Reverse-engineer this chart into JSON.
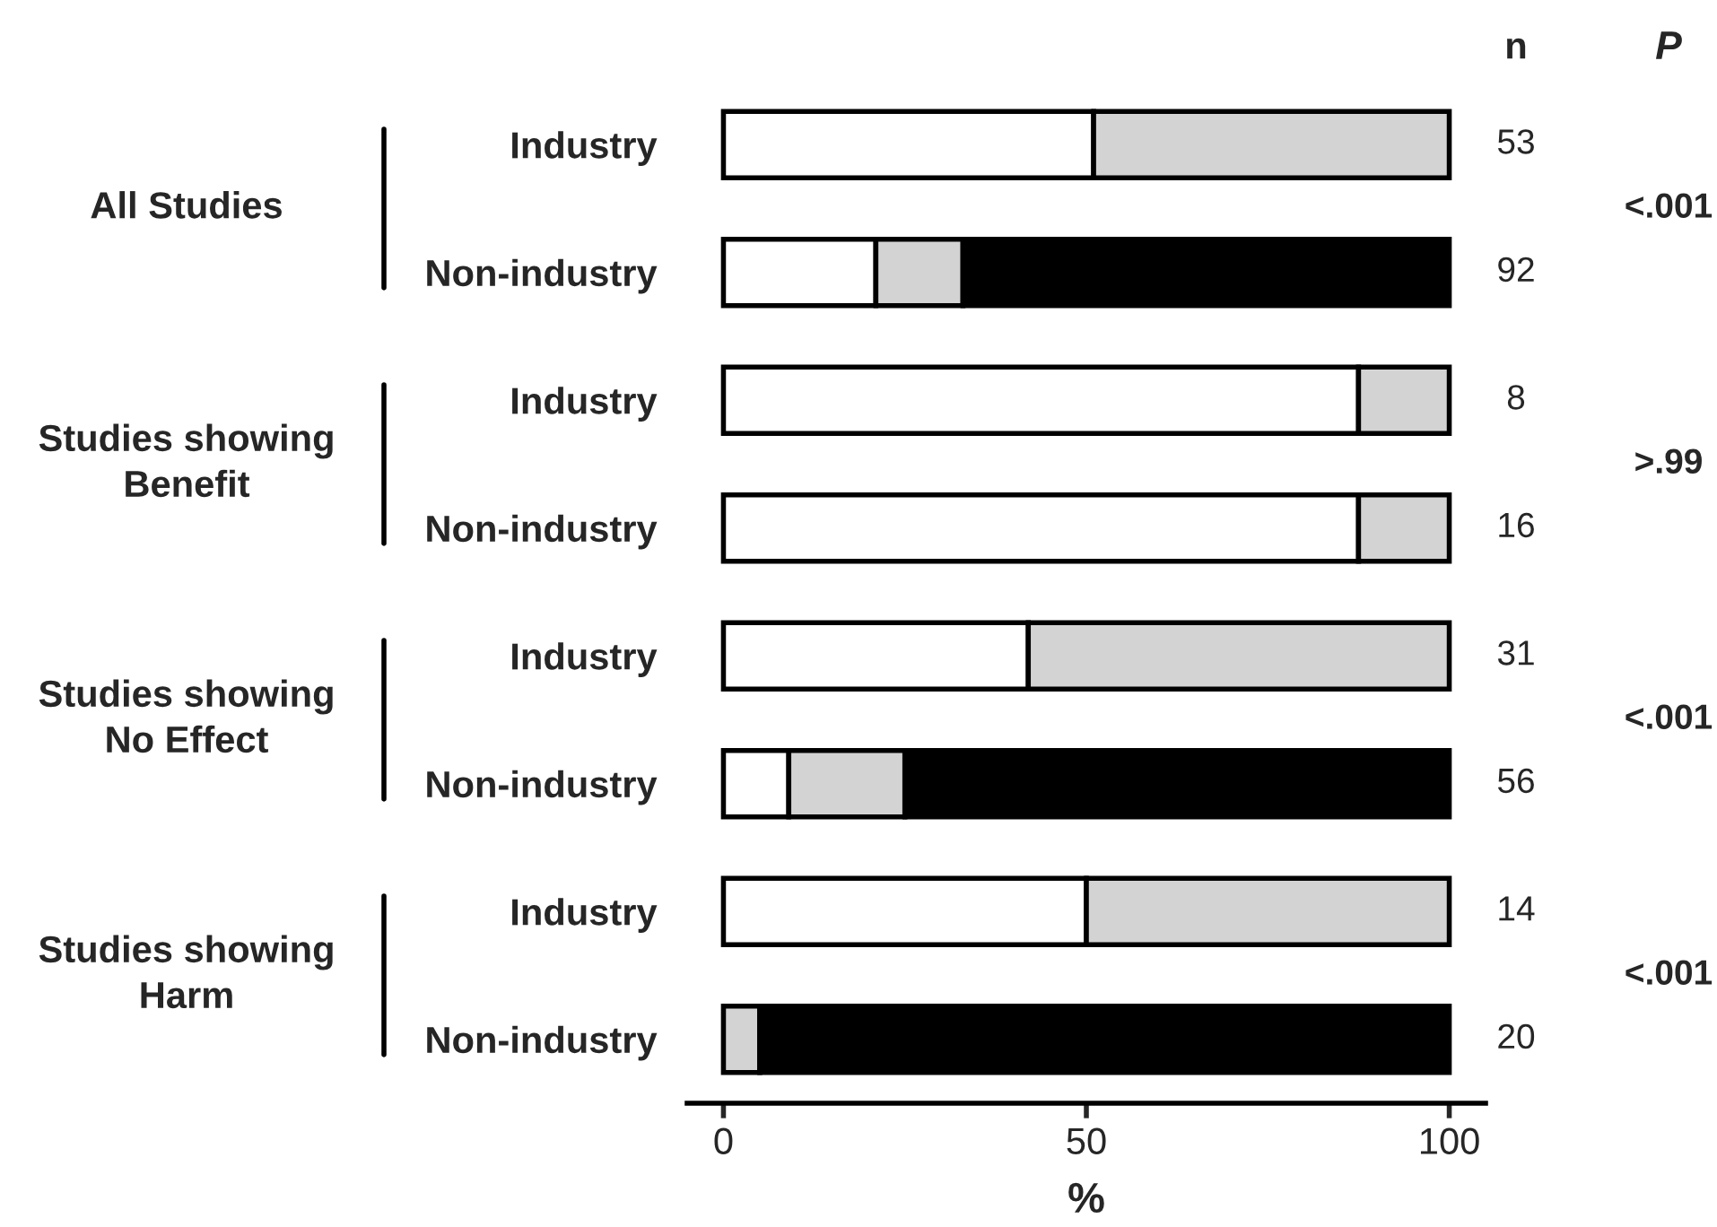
{
  "chart_data": {
    "type": "bar",
    "orientation": "horizontal",
    "stacked": true,
    "xlabel": "%",
    "categories": [
      "Industry",
      "Non-industry",
      "Industry",
      "Non-industry",
      "Industry",
      "Non-industry",
      "Industry",
      "Non-industry"
    ],
    "series": [
      {
        "color": "#ffffff",
        "values": [
          51,
          21,
          87.5,
          87.5,
          42,
          9,
          50,
          null
        ]
      },
      {
        "color": "#d3d3d3",
        "values": [
          49,
          12,
          12.5,
          12.5,
          58,
          16,
          50,
          5
        ]
      },
      {
        "color": "#000000",
        "values": [
          null,
          67,
          null,
          null,
          null,
          75,
          null,
          95
        ]
      }
    ],
    "xlim": [
      -5,
      105
    ],
    "xticks": [
      0,
      50,
      100
    ],
    "grid": false,
    "legend": false,
    "tick_labels": "xy",
    "annotations": [
      "All Studies",
      "Studies showing\nBenefit",
      "Studies showing\nNo Effect",
      "Studies showing\nHarm",
      "n",
      "53",
      "92",
      "8",
      "16",
      "31",
      "56",
      "14",
      "20",
      "P",
      "<.001",
      ">.99",
      "<.001",
      "<.001"
    ]
  }
}
